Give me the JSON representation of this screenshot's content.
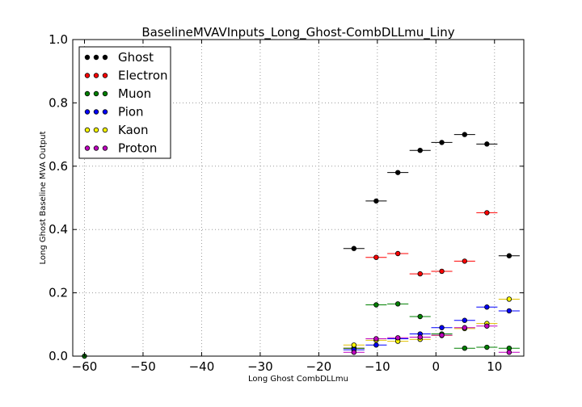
{
  "chart_data": {
    "type": "scatter",
    "title": "BaselineMVAVInputs_Long_Ghost-CombDLLmu_Liny",
    "xlabel": "Long Ghost CombDLLmu",
    "ylabel": "Long Ghost Baseline MVA Output",
    "xlim": [
      -62,
      15
    ],
    "ylim": [
      0.0,
      1.0
    ],
    "xticks": [
      -60,
      -50,
      -40,
      -30,
      -20,
      -10,
      0,
      10
    ],
    "yticks": [
      0.0,
      0.2,
      0.4,
      0.6,
      0.8,
      1.0
    ],
    "xtick_labels": [
      "−60",
      "−50",
      "−40",
      "−30",
      "−20",
      "−10",
      "0",
      "10"
    ],
    "ytick_labels": [
      "0.0",
      "0.2",
      "0.4",
      "0.6",
      "0.8",
      "1.0"
    ],
    "grid": true,
    "legend_position": "top-left",
    "bin_half_width": 1.8,
    "series": [
      {
        "name": "Ghost",
        "color": "#000000",
        "points": [
          [
            -14,
            0.34
          ],
          [
            -10.2,
            0.49
          ],
          [
            -6.5,
            0.58
          ],
          [
            -2.7,
            0.65
          ],
          [
            1,
            0.675
          ],
          [
            4.9,
            0.7
          ],
          [
            8.7,
            0.67
          ],
          [
            12.5,
            0.317
          ]
        ]
      },
      {
        "name": "Electron",
        "color": "#ff0000",
        "points": [
          [
            -14,
            0.025
          ],
          [
            -10.2,
            0.312
          ],
          [
            -6.5,
            0.324
          ],
          [
            -2.7,
            0.26
          ],
          [
            1,
            0.268
          ],
          [
            4.9,
            0.3
          ],
          [
            8.7,
            0.453
          ]
        ]
      },
      {
        "name": "Muon",
        "color": "#008000",
        "points": [
          [
            -60,
            0.0
          ],
          [
            -14,
            0.025
          ],
          [
            -10.2,
            0.162
          ],
          [
            -6.5,
            0.165
          ],
          [
            -2.7,
            0.125
          ],
          [
            1,
            0.07
          ],
          [
            4.9,
            0.025
          ],
          [
            8.7,
            0.028
          ],
          [
            12.5,
            0.025
          ]
        ]
      },
      {
        "name": "Pion",
        "color": "#0000ff",
        "points": [
          [
            -14,
            0.02
          ],
          [
            -10.2,
            0.035
          ],
          [
            -6.5,
            0.055
          ],
          [
            -2.7,
            0.07
          ],
          [
            1,
            0.09
          ],
          [
            4.9,
            0.113
          ],
          [
            8.7,
            0.155
          ],
          [
            12.5,
            0.143
          ]
        ]
      },
      {
        "name": "Kaon",
        "color": "#ffff00",
        "points": [
          [
            -14,
            0.035
          ],
          [
            -10.2,
            0.05
          ],
          [
            -6.5,
            0.047
          ],
          [
            -2.7,
            0.053
          ],
          [
            1,
            0.065
          ],
          [
            4.9,
            0.087
          ],
          [
            8.7,
            0.103
          ],
          [
            12.5,
            0.18
          ]
        ]
      },
      {
        "name": "Proton",
        "color": "#bf00bf",
        "points": [
          [
            -14,
            0.012
          ],
          [
            -10.2,
            0.055
          ],
          [
            -6.5,
            0.058
          ],
          [
            -2.7,
            0.06
          ],
          [
            1,
            0.066
          ],
          [
            4.9,
            0.09
          ],
          [
            8.7,
            0.095
          ],
          [
            12.5,
            0.012
          ]
        ]
      }
    ]
  }
}
